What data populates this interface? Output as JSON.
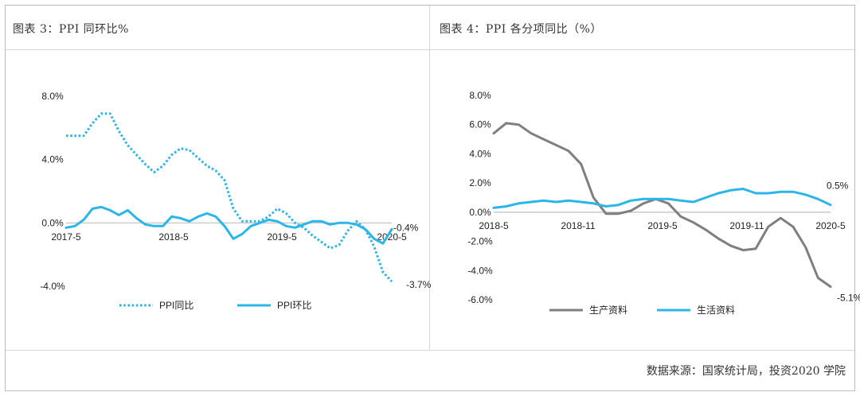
{
  "page": {
    "source_text": "数据来源：国家统计局，投资2020 学院"
  },
  "chart_data": [
    {
      "type": "line",
      "title": "图表 3：PPI 同环比%",
      "x_ticks": [
        "2017-5",
        "2018-5",
        "2019-5",
        "2020-5"
      ],
      "y_ticks": [
        "8.0%",
        "4.0%",
        "0.0%",
        "-4.0%"
      ],
      "ylim": [
        -4,
        8
      ],
      "grid": false,
      "legend_position": "bottom",
      "series": [
        {
          "name": "PPI同比",
          "style": "dotted",
          "color": "#2bb5e8",
          "end_label": "-3.7%",
          "values": [
            5.5,
            5.5,
            5.5,
            6.3,
            6.9,
            6.9,
            5.8,
            4.9,
            4.3,
            3.7,
            3.2,
            3.6,
            4.3,
            4.7,
            4.6,
            4.1,
            3.6,
            3.3,
            2.7,
            0.9,
            0.1,
            0.1,
            0.1,
            0.4,
            0.9,
            0.6,
            0.0,
            -0.3,
            -0.8,
            -1.2,
            -1.6,
            -1.4,
            -0.5,
            0.1,
            -0.4,
            -1.5,
            -3.1,
            -3.7
          ]
        },
        {
          "name": "PPI环比",
          "style": "solid",
          "color": "#2bb5e8",
          "end_label": "-0.4%",
          "values": [
            -0.3,
            -0.2,
            0.2,
            0.9,
            1.0,
            0.8,
            0.5,
            0.8,
            0.3,
            -0.1,
            -0.2,
            -0.2,
            0.4,
            0.3,
            0.1,
            0.4,
            0.6,
            0.4,
            -0.2,
            -1.0,
            -0.7,
            -0.2,
            0.0,
            0.2,
            0.1,
            -0.2,
            -0.3,
            -0.1,
            0.1,
            0.1,
            -0.1,
            0.0,
            0.0,
            -0.1,
            -0.4,
            -1.0,
            -1.3,
            -0.4
          ]
        }
      ]
    },
    {
      "type": "line",
      "title": "图表 4：PPI 各分项同比（%）",
      "x_ticks": [
        "2018-5",
        "2018-11",
        "2019-5",
        "2019-11",
        "2020-5"
      ],
      "y_ticks": [
        "8.0%",
        "6.0%",
        "4.0%",
        "2.0%",
        "0.0%",
        "-2.0%",
        "-4.0%",
        "-6.0%"
      ],
      "ylim": [
        -6,
        8
      ],
      "grid": false,
      "legend_position": "bottom",
      "series": [
        {
          "name": "生产资料",
          "style": "solid",
          "color": "#7f7f7f",
          "end_label": "-5.1%",
          "values": [
            5.4,
            6.1,
            6.0,
            5.4,
            5.0,
            4.6,
            4.2,
            3.3,
            1.0,
            -0.1,
            -0.1,
            0.1,
            0.6,
            0.9,
            0.6,
            -0.3,
            -0.7,
            -1.2,
            -1.8,
            -2.3,
            -2.6,
            -2.5,
            -1.0,
            -0.4,
            -1.0,
            -2.4,
            -4.5,
            -5.1
          ]
        },
        {
          "name": "生活资料",
          "style": "solid",
          "color": "#2bb5e8",
          "end_label": "0.5%",
          "values": [
            0.3,
            0.4,
            0.6,
            0.7,
            0.8,
            0.7,
            0.8,
            0.7,
            0.6,
            0.4,
            0.5,
            0.8,
            0.9,
            0.9,
            0.9,
            0.8,
            0.7,
            1.0,
            1.3,
            1.5,
            1.6,
            1.3,
            1.3,
            1.4,
            1.4,
            1.2,
            0.9,
            0.5
          ]
        }
      ]
    }
  ]
}
